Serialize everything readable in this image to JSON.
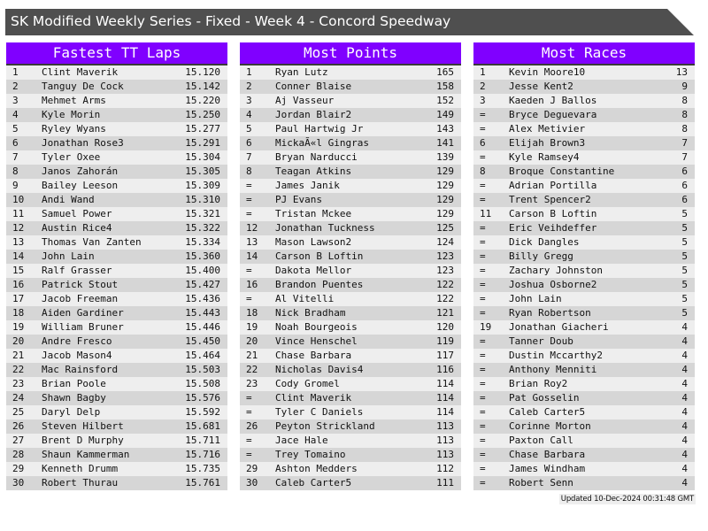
{
  "title": "SK Modified Weekly Series - Fixed - Week 4 - Concord Speedway",
  "footer": "Updated 10-Dec-2024 00:31:48 GMT",
  "colors": {
    "header": "#8000ff",
    "title_bar": "#4f4f4f",
    "row_light": "#eeeeee",
    "row_dark": "#d6d6d6"
  },
  "tables": [
    {
      "title": "Fastest TT Laps",
      "rows": [
        [
          "1",
          "Clint Maverik",
          "15.120"
        ],
        [
          "2",
          "Tanguy De Cock",
          "15.142"
        ],
        [
          "3",
          "Mehmet Arms",
          "15.220"
        ],
        [
          "4",
          "Kyle Morin",
          "15.250"
        ],
        [
          "5",
          "Ryley Wyans",
          "15.277"
        ],
        [
          "6",
          "Jonathan Rose3",
          "15.291"
        ],
        [
          "7",
          "Tyler Oxee",
          "15.304"
        ],
        [
          "8",
          "Janos Zahorán",
          "15.305"
        ],
        [
          "9",
          "Bailey Leeson",
          "15.309"
        ],
        [
          "10",
          "Andi Wand",
          "15.310"
        ],
        [
          "11",
          "Samuel Power",
          "15.321"
        ],
        [
          "12",
          "Austin Rice4",
          "15.322"
        ],
        [
          "13",
          "Thomas Van Zanten",
          "15.334"
        ],
        [
          "14",
          "John Lain",
          "15.360"
        ],
        [
          "15",
          "Ralf Grasser",
          "15.400"
        ],
        [
          "16",
          "Patrick Stout",
          "15.427"
        ],
        [
          "17",
          "Jacob Freeman",
          "15.436"
        ],
        [
          "18",
          "Aiden Gardiner",
          "15.443"
        ],
        [
          "19",
          "William Bruner",
          "15.446"
        ],
        [
          "20",
          "Andre Fresco",
          "15.450"
        ],
        [
          "21",
          "Jacob Mason4",
          "15.464"
        ],
        [
          "22",
          "Mac Rainsford",
          "15.503"
        ],
        [
          "23",
          "Brian Poole",
          "15.508"
        ],
        [
          "24",
          "Shawn Bagby",
          "15.576"
        ],
        [
          "25",
          "Daryl Delp",
          "15.592"
        ],
        [
          "26",
          "Steven Hilbert",
          "15.681"
        ],
        [
          "27",
          "Brent D Murphy",
          "15.711"
        ],
        [
          "28",
          "Shaun Kammerman",
          "15.716"
        ],
        [
          "29",
          "Kenneth Drumm",
          "15.735"
        ],
        [
          "30",
          "Robert Thurau",
          "15.761"
        ]
      ]
    },
    {
      "title": "Most Points",
      "rows": [
        [
          "1",
          "Ryan Lutz",
          "165"
        ],
        [
          "2",
          "Conner Blaise",
          "158"
        ],
        [
          "3",
          "Aj Vasseur",
          "152"
        ],
        [
          "4",
          "Jordan Blair2",
          "149"
        ],
        [
          "5",
          "Paul Hartwig Jr",
          "143"
        ],
        [
          "6",
          "MickaÃ«l Gingras",
          "141"
        ],
        [
          "7",
          "Bryan Narducci",
          "139"
        ],
        [
          "8",
          "Teagan Atkins",
          "129"
        ],
        [
          "=",
          "James Janik",
          "129"
        ],
        [
          "=",
          "PJ Evans",
          "129"
        ],
        [
          "=",
          "Tristan Mckee",
          "129"
        ],
        [
          "12",
          "Jonathan Tuckness",
          "125"
        ],
        [
          "13",
          "Mason Lawson2",
          "124"
        ],
        [
          "14",
          "Carson B Loftin",
          "123"
        ],
        [
          "=",
          "Dakota Mellor",
          "123"
        ],
        [
          "16",
          "Brandon Puentes",
          "122"
        ],
        [
          "=",
          "Al Vitelli",
          "122"
        ],
        [
          "18",
          "Nick Bradham",
          "121"
        ],
        [
          "19",
          "Noah Bourgeois",
          "120"
        ],
        [
          "20",
          "Vince Henschel",
          "119"
        ],
        [
          "21",
          "Chase Barbara",
          "117"
        ],
        [
          "22",
          "Nicholas Davis4",
          "116"
        ],
        [
          "23",
          "Cody Gromel",
          "114"
        ],
        [
          "=",
          "Clint Maverik",
          "114"
        ],
        [
          "=",
          "Tyler C Daniels",
          "114"
        ],
        [
          "26",
          "Peyton Strickland",
          "113"
        ],
        [
          "=",
          "Jace Hale",
          "113"
        ],
        [
          "=",
          "Trey Tomaino",
          "113"
        ],
        [
          "29",
          "Ashton Medders",
          "112"
        ],
        [
          "30",
          "Caleb Carter5",
          "111"
        ]
      ]
    },
    {
      "title": "Most Races",
      "rows": [
        [
          "1",
          "Kevin Moore10",
          "13"
        ],
        [
          "2",
          "Jesse Kent2",
          "9"
        ],
        [
          "3",
          "Kaeden J Ballos",
          "8"
        ],
        [
          "=",
          "Bryce Deguevara",
          "8"
        ],
        [
          "=",
          "Alex Metivier",
          "8"
        ],
        [
          "6",
          "Elijah Brown3",
          "7"
        ],
        [
          "=",
          "Kyle Ramsey4",
          "7"
        ],
        [
          "8",
          "Broque Constantine",
          "6"
        ],
        [
          "=",
          "Adrian Portilla",
          "6"
        ],
        [
          "=",
          "Trent Spencer2",
          "6"
        ],
        [
          "11",
          "Carson B Loftin",
          "5"
        ],
        [
          "=",
          "Eric Veihdeffer",
          "5"
        ],
        [
          "=",
          "Dick Dangles",
          "5"
        ],
        [
          "=",
          "Billy Gregg",
          "5"
        ],
        [
          "=",
          "Zachary Johnston",
          "5"
        ],
        [
          "=",
          "Joshua Osborne2",
          "5"
        ],
        [
          "=",
          "John Lain",
          "5"
        ],
        [
          "=",
          "Ryan Robertson",
          "5"
        ],
        [
          "19",
          "Jonathan Giacheri",
          "4"
        ],
        [
          "=",
          "Tanner Doub",
          "4"
        ],
        [
          "=",
          "Dustin Mccarthy2",
          "4"
        ],
        [
          "=",
          "Anthony Menniti",
          "4"
        ],
        [
          "=",
          "Brian Roy2",
          "4"
        ],
        [
          "=",
          "Pat Gosselin",
          "4"
        ],
        [
          "=",
          "Caleb Carter5",
          "4"
        ],
        [
          "=",
          "Corinne Morton",
          "4"
        ],
        [
          "=",
          "Paxton Call",
          "4"
        ],
        [
          "=",
          "Chase Barbara",
          "4"
        ],
        [
          "=",
          "James Windham",
          "4"
        ],
        [
          "=",
          "Robert Senn",
          "4"
        ]
      ]
    }
  ]
}
